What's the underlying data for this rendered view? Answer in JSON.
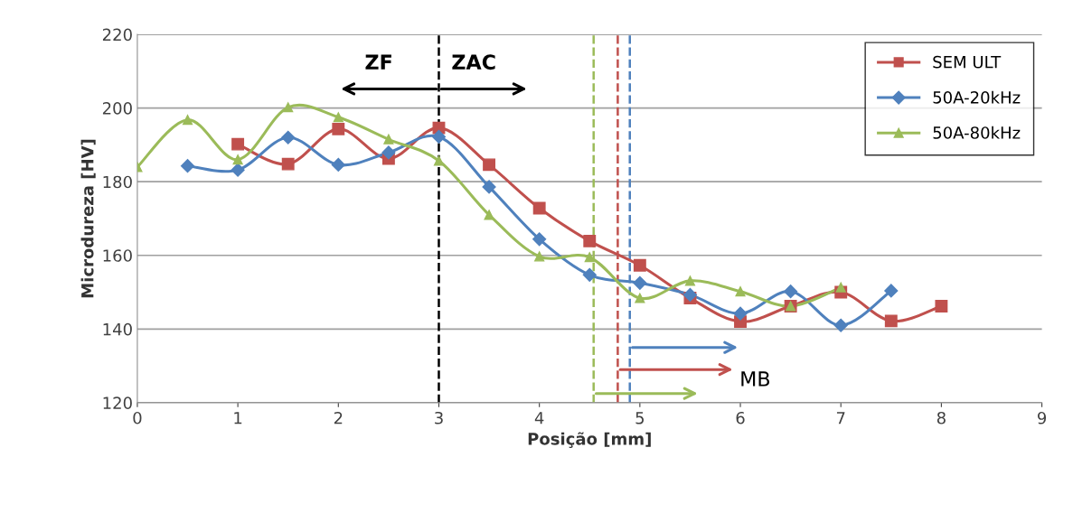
{
  "chart_data": {
    "type": "line",
    "xlabel": "Posição [mm]",
    "ylabel": "Microdureza [HV]",
    "xlim": [
      0,
      9
    ],
    "xticks": [
      0,
      1,
      2,
      3,
      4,
      5,
      6,
      7,
      8,
      9
    ],
    "ylim": [
      120,
      220
    ],
    "yticks": [
      120,
      140,
      160,
      180,
      200,
      220
    ],
    "grid": "y",
    "legend": "top right",
    "series": [
      {
        "name": "SEM ULT",
        "color": "#c0504d",
        "marker": "square",
        "x": [
          1,
          1.5,
          2,
          2.5,
          3,
          3.5,
          4,
          4.5,
          5,
          5.5,
          6,
          6.5,
          7,
          7.5,
          8
        ],
        "values": [
          190.2,
          184.8,
          194.3,
          186.3,
          194.6,
          184.6,
          172.8,
          163.9,
          157.3,
          148.4,
          142,
          146.2,
          150,
          142.2,
          146.2
        ]
      },
      {
        "name": "50A-20kHz",
        "color": "#4f81bd",
        "marker": "diamond",
        "x": [
          0.5,
          1,
          1.5,
          2,
          2.5,
          3,
          3.5,
          4,
          4.5,
          5,
          5.5,
          6,
          6.5,
          7,
          7.5
        ],
        "values": [
          184.3,
          183.2,
          192,
          184.6,
          187.9,
          192.2,
          178.6,
          164.4,
          154.7,
          152.5,
          149.3,
          144.2,
          150.2,
          141,
          150.4
        ]
      },
      {
        "name": "50A-80kHz",
        "color": "#9bbb59",
        "marker": "triangle",
        "x": [
          0,
          0.5,
          1,
          1.5,
          2,
          2.5,
          3,
          3.5,
          4,
          4.5,
          5,
          5.5,
          6,
          6.5,
          7
        ],
        "values": [
          184,
          196.8,
          186,
          200.2,
          197.5,
          191.5,
          185.7,
          171,
          159.7,
          159.5,
          148.4,
          153.1,
          150.2,
          146.2,
          151.3
        ]
      }
    ],
    "ref_lines": [
      {
        "axis": "x",
        "value": 3,
        "color": "#000000",
        "line_style": "dashed"
      },
      {
        "axis": "x",
        "value": 4.54,
        "color": "#9bbb59",
        "line_style": "dashed"
      },
      {
        "axis": "x",
        "value": 4.78,
        "color": "#c0504d",
        "line_style": "dashed"
      },
      {
        "axis": "x",
        "value": 4.9,
        "color": "#4f81bd",
        "line_style": "dashed"
      }
    ],
    "annotations": [
      "ZF",
      "ZAC",
      {
        "text": "MB",
        "x": 4.9,
        "y": 135
      }
    ]
  }
}
